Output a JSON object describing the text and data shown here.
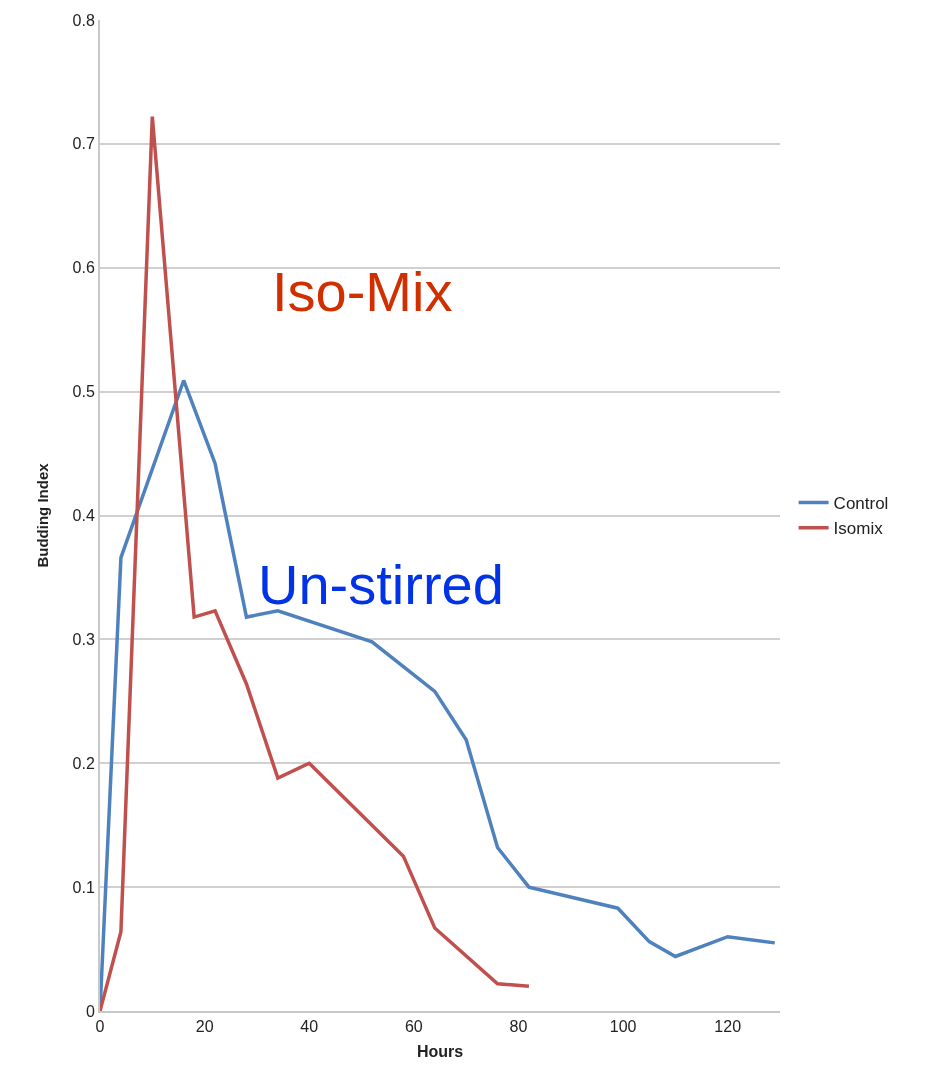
{
  "chart_data": {
    "type": "line",
    "xlabel": "Hours",
    "ylabel": "Budding Index",
    "xlim": [
      0,
      130
    ],
    "xticks": [
      0,
      20,
      40,
      60,
      80,
      100,
      120
    ],
    "ylim": [
      0,
      0.8
    ],
    "yticks": [
      0,
      0.1,
      0.2,
      0.3,
      0.4,
      0.5,
      0.6,
      0.7,
      0.8
    ],
    "grid": "y",
    "legend": "right",
    "marker": "none",
    "line_style": "solid",
    "annotations": [
      "Iso-Mix",
      "Un-stirred"
    ],
    "series": [
      {
        "name": "Control",
        "color": "#4f81bd",
        "x": [
          0,
          4,
          16,
          22,
          28,
          34,
          52,
          64,
          70,
          76,
          82,
          99,
          105,
          110,
          120,
          129
        ],
        "values": [
          0,
          0.366,
          0.509,
          0.442,
          0.318,
          0.323,
          0.298,
          0.258,
          0.219,
          0.132,
          0.1,
          0.083,
          0.056,
          0.044,
          0.06,
          0.055
        ]
      },
      {
        "name": "Isomix",
        "color": "#c0504d",
        "x": [
          0,
          4,
          10,
          18,
          22,
          28,
          34,
          40,
          58,
          64,
          76,
          82
        ],
        "values": [
          0,
          0.064,
          0.722,
          0.318,
          0.323,
          0.264,
          0.188,
          0.2,
          0.125,
          0.067,
          0.022,
          0.02
        ]
      }
    ]
  }
}
